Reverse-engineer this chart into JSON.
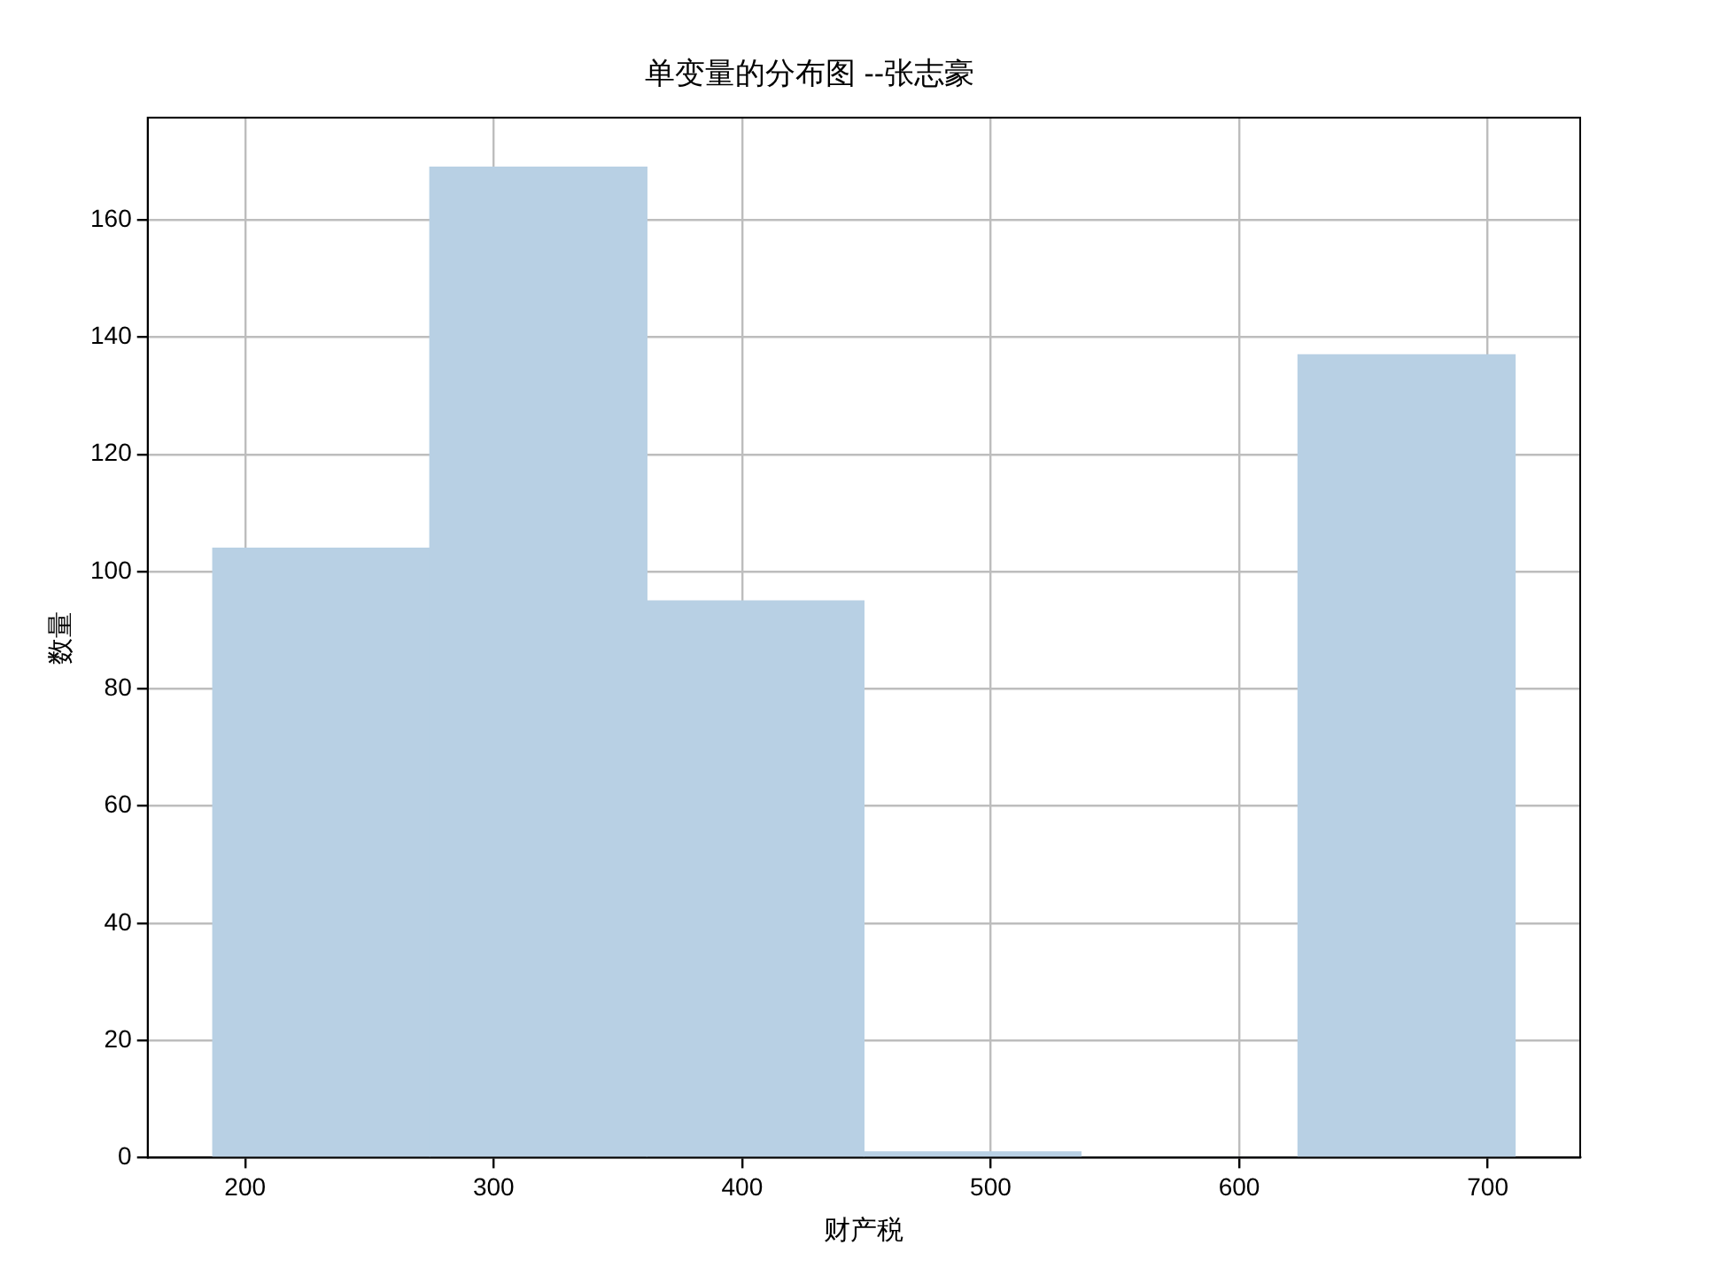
{
  "chart_data": {
    "type": "histogram",
    "title": "单变量的分布图 --张志豪",
    "xlabel": "财产税",
    "ylabel": "数量",
    "bins": [
      187,
      274.33,
      361.67,
      449,
      536.33,
      623.67,
      711
    ],
    "values": [
      104,
      169,
      95,
      1,
      0,
      137
    ],
    "color": "#b8d0e4",
    "xlim": [
      160.8,
      737.2
    ],
    "xticks": [
      200,
      300,
      400,
      500,
      600,
      700
    ],
    "ylim": [
      0,
      177.45
    ],
    "yticks": [
      0,
      20,
      40,
      60,
      80,
      100,
      120,
      140,
      160
    ],
    "grid": true,
    "legend": false
  }
}
